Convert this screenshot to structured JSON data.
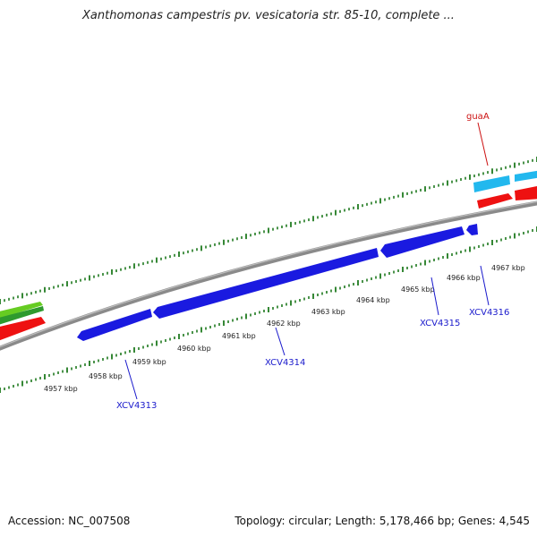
{
  "title": "Xanthomonas campestris pv. vesicatoria str. 85-10, complete ...",
  "footer": {
    "accession": "Accession: NC_007508",
    "topology": "Topology: circular; Length: 5,178,466 bp; Genes: 4,545"
  },
  "colors": {
    "backbone": "#8a8a8a",
    "tick": "#1f7a1f",
    "gene_blue": "#1a1ae0",
    "gene_red": "#ee1111",
    "gene_cyan": "#22b8ee",
    "gene_green": "#66cc22",
    "label_blue": "#1a1acc",
    "label_red": "#cc1111"
  },
  "ruler_labels": [
    "4957 kbp",
    "4958 kbp",
    "4959 kbp",
    "4960 kbp",
    "4961 kbp",
    "4962 kbp",
    "4963 kbp",
    "4964 kbp",
    "4965 kbp",
    "4966 kbp",
    "4967 kbp"
  ],
  "gene_labels": [
    {
      "name": "XCV4313",
      "color": "blue"
    },
    {
      "name": "XCV4314",
      "color": "blue"
    },
    {
      "name": "XCV4315",
      "color": "blue"
    },
    {
      "name": "XCV4316",
      "color": "blue"
    },
    {
      "name": "guaA",
      "color": "red"
    }
  ]
}
